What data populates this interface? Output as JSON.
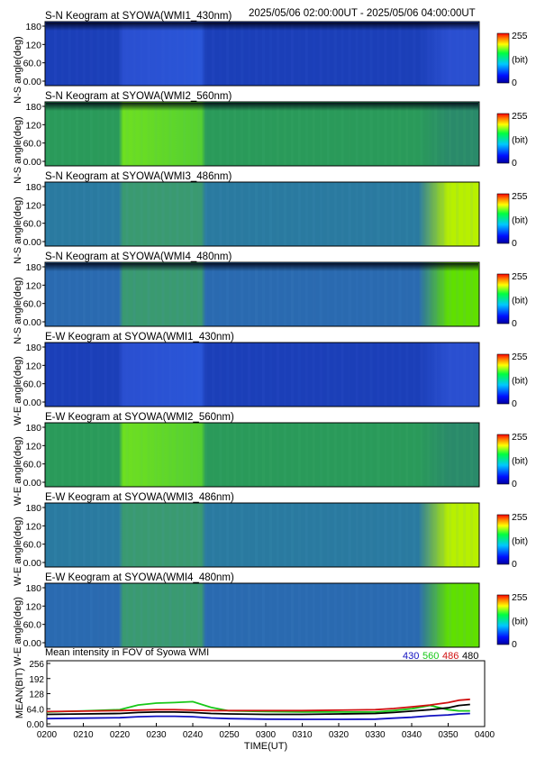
{
  "header": {
    "time_range": "2025/05/06 02:00:00UT - 2025/05/06 04:00:00UT"
  },
  "colorbar": {
    "max_label": "255",
    "unit_label": "(bit)",
    "min_label": "0"
  },
  "keogram_y_ticks": [
    "180",
    "120",
    "60.0",
    "0.00"
  ],
  "keograms": [
    {
      "title": "S-N Keogram at SYOWA(WMI1_430nm)",
      "ylabel": "N-S angle(deg)",
      "palette": "430",
      "top_band": true
    },
    {
      "title": "S-N Keogram at SYOWA(WMI2_560nm)",
      "ylabel": "N-S angle(deg)",
      "palette": "560",
      "top_band": true
    },
    {
      "title": "S-N Keogram at SYOWA(WMI3_486nm)",
      "ylabel": "N-S angle(deg)",
      "palette": "486",
      "top_band": false
    },
    {
      "title": "S-N Keogram at SYOWA(WMI4_480nm)",
      "ylabel": "N-S angle(deg)",
      "palette": "480",
      "top_band": true
    },
    {
      "title": "E-W Keogram at SYOWA(WMI1_430nm)",
      "ylabel": "W-E angle(deg)",
      "palette": "430",
      "top_band": false
    },
    {
      "title": "E-W Keogram at SYOWA(WMI2_560nm)",
      "ylabel": "W-E angle(deg)",
      "palette": "560",
      "top_band": false
    },
    {
      "title": "E-W Keogram at SYOWA(WMI3_486nm)",
      "ylabel": "W-E angle(deg)",
      "palette": "486",
      "top_band": false
    },
    {
      "title": "E-W Keogram at SYOWA(WMI4_480nm)",
      "ylabel": "W-E angle(deg)",
      "palette": "480",
      "top_band": false
    }
  ],
  "mean_panel": {
    "title": "Mean intensity in FOV of Syowa WMI",
    "legend": [
      {
        "label": "430",
        "color": "#1010c0"
      },
      {
        "label": "560",
        "color": "#18c818"
      },
      {
        "label": "486",
        "color": "#d01010"
      },
      {
        "label": "480",
        "color": "#000000"
      }
    ]
  },
  "chart_data": {
    "type": "line",
    "title": "Mean intensity in FOV of Syowa WMI",
    "xlabel": "TIME(UT)",
    "ylabel": "MEAN(BIT)",
    "x_tick_labels": [
      "0200",
      "0210",
      "0220",
      "0230",
      "0240",
      "0250",
      "0300",
      "0310",
      "0320",
      "0330",
      "0340",
      "0350",
      "0400"
    ],
    "y_tick_labels": [
      "256",
      "192",
      "128",
      "64.0",
      "0.00"
    ],
    "xlim": [
      "0200",
      "0400"
    ],
    "ylim": [
      0,
      256
    ],
    "x_minutes": [
      0,
      10,
      20,
      25,
      30,
      35,
      40,
      45,
      50,
      60,
      70,
      80,
      90,
      95,
      100,
      105,
      110,
      113,
      116
    ],
    "series": [
      {
        "name": "430",
        "color": "#1010c0",
        "values": [
          22,
          24,
          26,
          30,
          32,
          32,
          30,
          25,
          22,
          20,
          19,
          19,
          20,
          24,
          28,
          34,
          38,
          42,
          44
        ]
      },
      {
        "name": "560",
        "color": "#18c818",
        "values": [
          50,
          55,
          60,
          80,
          88,
          90,
          94,
          70,
          55,
          52,
          50,
          50,
          50,
          56,
          64,
          78,
          60,
          55,
          55
        ]
      },
      {
        "name": "486",
        "color": "#d01010",
        "values": [
          52,
          54,
          56,
          58,
          60,
          60,
          58,
          56,
          56,
          56,
          56,
          58,
          60,
          65,
          72,
          80,
          90,
          100,
          104
        ]
      },
      {
        "name": "480",
        "color": "#000000",
        "values": [
          40,
          42,
          44,
          48,
          50,
          50,
          48,
          44,
          42,
          40,
          40,
          42,
          44,
          48,
          54,
          60,
          68,
          78,
          82
        ]
      }
    ]
  }
}
